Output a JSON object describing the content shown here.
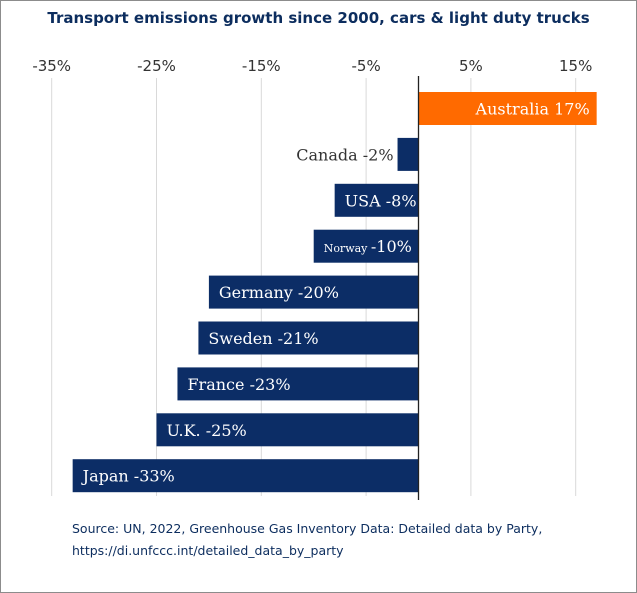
{
  "chart_data": {
    "type": "bar",
    "orientation": "horizontal",
    "title": "Transport emissions growth since 2000, cars & light duty trucks",
    "categories": [
      "Australia",
      "Canada",
      "USA",
      "Norway",
      "Germany",
      "Sweden",
      "France",
      "U.K.",
      "Japan"
    ],
    "values": [
      17,
      -2,
      -8,
      -10,
      -20,
      -21,
      -23,
      -25,
      -33
    ],
    "data_labels": [
      "Australia 17%",
      "Canada -2%",
      "USA -8%",
      "Norway -10%",
      "Germany -20%",
      "Sweden -21%",
      "France -23%",
      "U.K. -25%",
      "Japan -33%"
    ],
    "xticks": [
      -35,
      -25,
      -15,
      -5,
      5,
      15
    ],
    "xtick_labels": [
      "-35%",
      "-25%",
      "-15%",
      "-5%",
      "5%",
      "15%"
    ],
    "xlim": [
      -35,
      17
    ],
    "xlabel": "",
    "ylabel": "",
    "grid": true,
    "colors": {
      "positive": "#ff6a00",
      "negative": "#0c2d66",
      "label_outside": "#333333"
    }
  },
  "source": {
    "line1": "Source: UN, 2022, Greenhouse Gas Inventory Data: Detailed data by Party,",
    "line2": "https://di.unfccc.int/detailed_data_by_party"
  }
}
